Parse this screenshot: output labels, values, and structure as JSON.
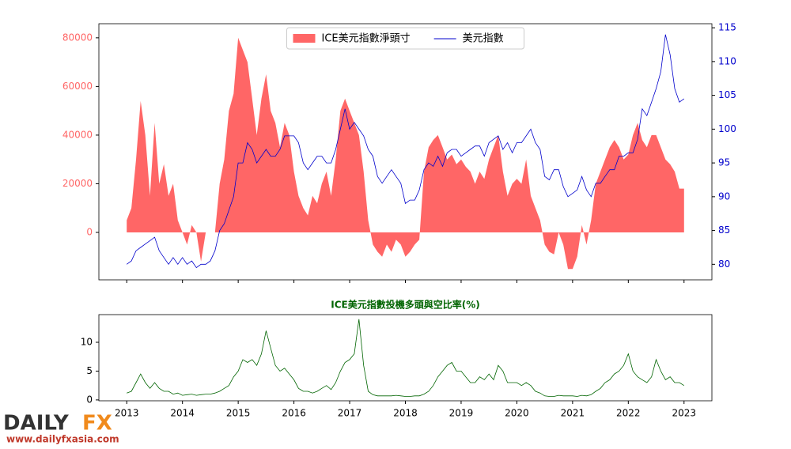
{
  "chart_data": [
    {
      "type": "area-line",
      "legend": "upper center",
      "xlim": [
        2012.5,
        2023.5
      ],
      "xticks": [
        2013,
        2014,
        2015,
        2016,
        2017,
        2018,
        2019,
        2020,
        2021,
        2022,
        2023
      ],
      "ylim": [
        -19500,
        85800
      ],
      "yticks": [
        0,
        20000,
        40000,
        60000,
        80000
      ],
      "y2lim": [
        77.7,
        115.6
      ],
      "y2ticks": [
        80,
        85,
        90,
        95,
        100,
        105,
        110,
        115
      ],
      "x": [
        2013,
        2013.083,
        2013.167,
        2013.25,
        2013.333,
        2013.417,
        2013.5,
        2013.583,
        2013.667,
        2013.75,
        2013.833,
        2013.917,
        2014,
        2014.083,
        2014.167,
        2014.25,
        2014.333,
        2014.417,
        2014.5,
        2014.583,
        2014.667,
        2014.75,
        2014.833,
        2014.917,
        2015,
        2015.083,
        2015.167,
        2015.25,
        2015.333,
        2015.417,
        2015.5,
        2015.583,
        2015.667,
        2015.75,
        2015.833,
        2015.917,
        2016,
        2016.083,
        2016.167,
        2016.25,
        2016.333,
        2016.417,
        2016.5,
        2016.583,
        2016.667,
        2016.75,
        2016.833,
        2016.917,
        2017,
        2017.083,
        2017.167,
        2017.25,
        2017.333,
        2017.417,
        2017.5,
        2017.583,
        2017.667,
        2017.75,
        2017.833,
        2017.917,
        2018,
        2018.083,
        2018.167,
        2018.25,
        2018.333,
        2018.417,
        2018.5,
        2018.583,
        2018.667,
        2018.75,
        2018.833,
        2018.917,
        2019,
        2019.083,
        2019.167,
        2019.25,
        2019.333,
        2019.417,
        2019.5,
        2019.583,
        2019.667,
        2019.75,
        2019.833,
        2019.917,
        2020,
        2020.083,
        2020.167,
        2020.25,
        2020.333,
        2020.417,
        2020.5,
        2020.583,
        2020.667,
        2020.75,
        2020.833,
        2020.917,
        2021,
        2021.083,
        2021.167,
        2021.25,
        2021.333,
        2021.417,
        2021.5,
        2021.583,
        2021.667,
        2021.75,
        2021.833,
        2021.917,
        2022,
        2022.083,
        2022.167,
        2022.25,
        2022.333,
        2022.417,
        2022.5,
        2022.583,
        2022.667,
        2022.75,
        2022.833,
        2022.917,
        2023
      ],
      "series": [
        {
          "name": "ICE美元指數淨頭寸",
          "color": "#ff6666",
          "axis": "y",
          "values": [
            5000,
            10000,
            30000,
            54000,
            40000,
            15000,
            45000,
            20000,
            28000,
            15000,
            20000,
            5000,
            0,
            -5000,
            3000,
            0,
            -12000,
            0,
            0,
            0,
            20000,
            30000,
            50000,
            57000,
            80000,
            75000,
            70000,
            55000,
            40000,
            55000,
            65000,
            50000,
            45000,
            35000,
            45000,
            40000,
            25000,
            15000,
            10000,
            7000,
            15000,
            12000,
            20000,
            25000,
            15000,
            30000,
            50000,
            55000,
            50000,
            45000,
            40000,
            25000,
            5000,
            -5000,
            -8000,
            -10000,
            -5000,
            -8000,
            -3000,
            -5000,
            -10000,
            -8000,
            -5000,
            -3000,
            25000,
            35000,
            38000,
            40000,
            35000,
            30000,
            32000,
            28000,
            30000,
            27000,
            25000,
            20000,
            25000,
            22000,
            30000,
            35000,
            40000,
            25000,
            15000,
            20000,
            22000,
            20000,
            30000,
            15000,
            10000,
            5000,
            -5000,
            -8000,
            -9000,
            0,
            -5000,
            -15000,
            -15000,
            -10000,
            3000,
            -5000,
            5000,
            20000,
            25000,
            30000,
            35000,
            38000,
            35000,
            30000,
            32000,
            40000,
            45000,
            38000,
            35000,
            40000,
            40000,
            35000,
            30000,
            28000,
            25000,
            18000,
            18000
          ]
        },
        {
          "name": "美元指數",
          "color": "#0000cc",
          "axis": "y2",
          "values": [
            80,
            80.5,
            82,
            82.5,
            83,
            83.5,
            84,
            82,
            81,
            80,
            81,
            80,
            81,
            80,
            80.5,
            79.5,
            80,
            80,
            80.5,
            82,
            85,
            86,
            88,
            90,
            95,
            95,
            98,
            97,
            95,
            96,
            97,
            96,
            96,
            97,
            99,
            99,
            99,
            98,
            95,
            94,
            95,
            96,
            96,
            95,
            95,
            97,
            100,
            103,
            100,
            101,
            100,
            99,
            97,
            96,
            93,
            92,
            93,
            94,
            93,
            92,
            89,
            89.5,
            89.5,
            91,
            94,
            95,
            94.5,
            96,
            94.5,
            96.5,
            97,
            97,
            96,
            96.5,
            97,
            97.5,
            97.5,
            96,
            98,
            98.5,
            99,
            97,
            98,
            96.5,
            98,
            98,
            99,
            100,
            98,
            97,
            93,
            92.5,
            94,
            94,
            91.5,
            90,
            90.5,
            91,
            93,
            91,
            90,
            92,
            92,
            93,
            94,
            94,
            96,
            96,
            96.5,
            96.5,
            98.5,
            103,
            102,
            104,
            106,
            108.5,
            114,
            111,
            106,
            104,
            104.5
          ]
        }
      ]
    },
    {
      "type": "line",
      "title": "ICE美元指數投機多頭與空比率(%)",
      "xlim": [
        2012.5,
        2023.5
      ],
      "xticks": [
        2013,
        2014,
        2015,
        2016,
        2017,
        2018,
        2019,
        2020,
        2021,
        2022,
        2023
      ],
      "ylim": [
        -0.15,
        14.8
      ],
      "yticks": [
        0,
        5,
        10
      ],
      "x": [
        2013,
        2013.083,
        2013.167,
        2013.25,
        2013.333,
        2013.417,
        2013.5,
        2013.583,
        2013.667,
        2013.75,
        2013.833,
        2013.917,
        2014,
        2014.083,
        2014.167,
        2014.25,
        2014.333,
        2014.417,
        2014.5,
        2014.583,
        2014.667,
        2014.75,
        2014.833,
        2014.917,
        2015,
        2015.083,
        2015.167,
        2015.25,
        2015.333,
        2015.417,
        2015.5,
        2015.583,
        2015.667,
        2015.75,
        2015.833,
        2015.917,
        2016,
        2016.083,
        2016.167,
        2016.25,
        2016.333,
        2016.417,
        2016.5,
        2016.583,
        2016.667,
        2016.75,
        2016.833,
        2016.917,
        2017,
        2017.083,
        2017.167,
        2017.25,
        2017.333,
        2017.417,
        2017.5,
        2017.583,
        2017.667,
        2017.75,
        2017.833,
        2017.917,
        2018,
        2018.083,
        2018.167,
        2018.25,
        2018.333,
        2018.417,
        2018.5,
        2018.583,
        2018.667,
        2018.75,
        2018.833,
        2018.917,
        2019,
        2019.083,
        2019.167,
        2019.25,
        2019.333,
        2019.417,
        2019.5,
        2019.583,
        2019.667,
        2019.75,
        2019.833,
        2019.917,
        2020,
        2020.083,
        2020.167,
        2020.25,
        2020.333,
        2020.417,
        2020.5,
        2020.583,
        2020.667,
        2020.75,
        2020.833,
        2020.917,
        2021,
        2021.083,
        2021.167,
        2021.25,
        2021.333,
        2021.417,
        2021.5,
        2021.583,
        2021.667,
        2021.75,
        2021.833,
        2021.917,
        2022,
        2022.083,
        2022.167,
        2022.25,
        2022.333,
        2022.417,
        2022.5,
        2022.583,
        2022.667,
        2022.75,
        2022.833,
        2022.917,
        2023
      ],
      "series": [
        {
          "color": "#006400",
          "values": [
            1.2,
            1.5,
            3,
            4.5,
            3,
            2,
            3,
            2,
            1.5,
            1.5,
            1,
            1.2,
            0.8,
            0.9,
            1,
            0.8,
            0.9,
            1,
            1,
            1.2,
            1.5,
            2,
            2.5,
            4,
            5,
            7,
            6.5,
            7,
            6,
            8,
            12,
            9,
            6,
            5,
            5.5,
            4.5,
            3.5,
            2,
            1.5,
            1.5,
            1.2,
            1.5,
            2,
            2.5,
            1.8,
            3,
            5,
            6.5,
            7,
            8,
            14,
            6,
            1.5,
            0.9,
            0.7,
            0.7,
            0.7,
            0.7,
            0.8,
            0.7,
            0.6,
            0.6,
            0.7,
            0.7,
            1,
            1.5,
            2.5,
            4,
            5,
            6,
            6.5,
            5,
            5,
            4,
            3,
            3,
            4,
            3.5,
            4.5,
            3.5,
            6,
            5,
            3,
            3,
            3,
            2.5,
            3,
            2.5,
            1.5,
            1.2,
            0.7,
            0.6,
            0.6,
            0.8,
            0.7,
            0.7,
            0.7,
            0.6,
            0.8,
            0.7,
            0.9,
            1.5,
            2,
            3,
            3.5,
            4.5,
            5,
            6,
            8,
            5,
            4,
            3.5,
            3,
            4,
            7,
            5,
            3.5,
            4,
            3,
            3,
            2.5
          ]
        }
      ]
    }
  ],
  "watermark": {
    "brand_left": "DAILY",
    "brand_right": "FX",
    "url": "www.dailyfxasia.com"
  }
}
